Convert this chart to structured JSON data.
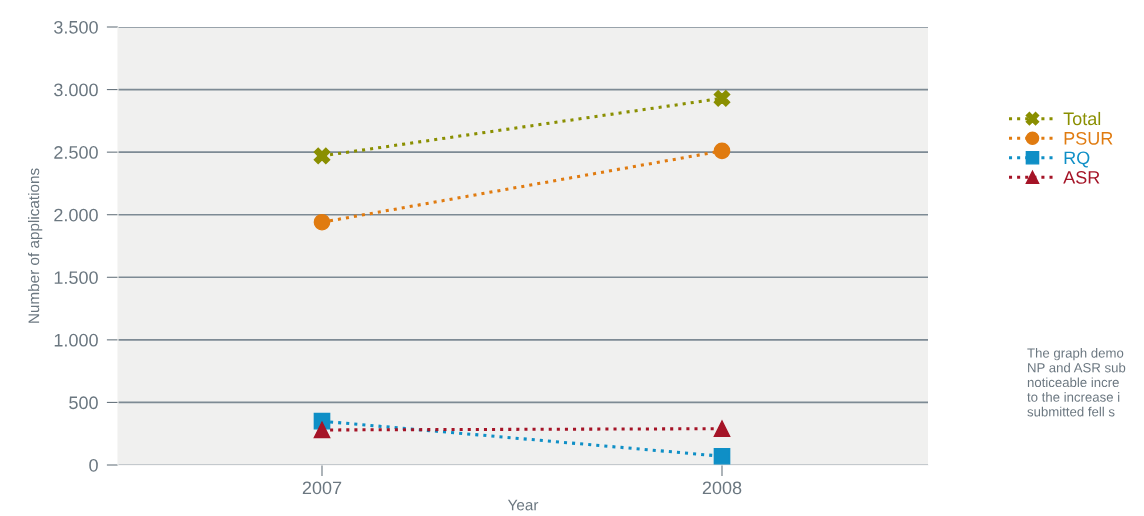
{
  "chart_data": {
    "type": "line",
    "xlabel": "Year",
    "ylabel": "Number of applications",
    "categories": [
      "2007",
      "2008"
    ],
    "series": [
      {
        "name": "Total",
        "color": "#8a8f00",
        "marker": "cross",
        "values": [
          2470,
          2930
        ]
      },
      {
        "name": "PSUR",
        "color": "#e07b10",
        "marker": "circle",
        "values": [
          1940,
          2510
        ]
      },
      {
        "name": "RQ",
        "color": "#0f8fc6",
        "marker": "square",
        "values": [
          350,
          70
        ]
      },
      {
        "name": "ASR",
        "color": "#a51427",
        "marker": "triangle",
        "values": [
          280,
          290
        ]
      }
    ],
    "ylim": [
      0,
      3500
    ],
    "yticks": [
      0,
      {
        "value": 500,
        "label": "500"
      },
      {
        "value": 1000,
        "label": "1.000"
      },
      {
        "value": 1500,
        "label": "1.500"
      },
      {
        "value": 2000,
        "label": "2.000"
      },
      {
        "value": 2500,
        "label": "2.500"
      },
      {
        "value": 3000,
        "label": "3.000"
      },
      {
        "value": 3500,
        "label": "3.500"
      }
    ],
    "grid": "y",
    "legend": "right",
    "line_style": "dotted",
    "annotations": [
      "The graph demo\nNP and ASR sub\nnoticeable incre\nto the increase i\nsubmitted fell s"
    ]
  }
}
